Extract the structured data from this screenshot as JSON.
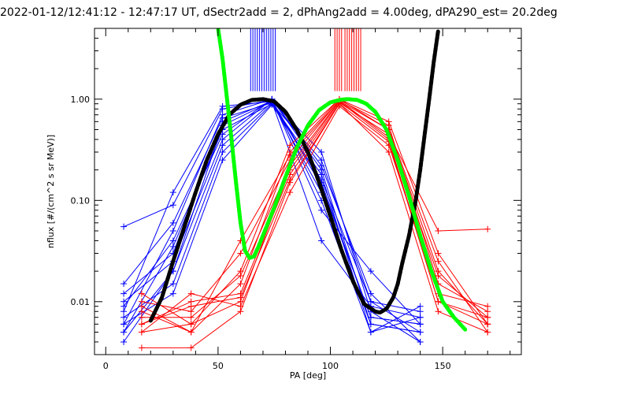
{
  "chart_data": {
    "type": "line",
    "title": "2022-01-12/12:41:12 - 12:47:17 UT, dSectr2add = 2, dPhAng2add = 4.00deg, dPA290_est=  20.2deg",
    "xlabel": "PA [deg]",
    "ylabel": "nflux [#/(cm^2 s sr MeV)]",
    "xlim": [
      -5,
      185
    ],
    "ylim": [
      0.003,
      5.0
    ],
    "yscale": "log",
    "grid": false,
    "x_ticks": [
      0,
      50,
      100,
      150
    ],
    "x_tick_labels": [
      "0",
      "50",
      "100",
      "150"
    ],
    "y_ticks": [
      0.01,
      0.1,
      1.0
    ],
    "y_tick_labels": [
      "0.01",
      "0.10",
      "1.00"
    ],
    "colors": {
      "blue": "#0000ff",
      "red": "#ff0000",
      "green": "#00ff00",
      "black": "#000000",
      "frame": "#000000",
      "background": "#ffffff"
    },
    "vertical_markers": {
      "blue": {
        "x": [
          64.5,
          65.5,
          66.5,
          67.5,
          68.5,
          69.5,
          70.5,
          71.5,
          72.5,
          73.5,
          74.5,
          75.5
        ],
        "y_from": 1.2,
        "y_to": 5.0
      },
      "red": {
        "x": [
          102,
          103,
          104,
          105,
          106.5,
          107.5,
          108.5,
          109.5,
          110.5,
          111.5,
          112.5,
          113.5
        ],
        "y_from": 1.2,
        "y_to": 5.0
      }
    },
    "series": [
      {
        "color": "blue",
        "x": [
          8,
          30,
          52,
          74,
          96,
          118,
          140
        ],
        "y": [
          0.006,
          0.05,
          0.7,
          1.0,
          0.2,
          0.006,
          0.005
        ]
      },
      {
        "color": "blue",
        "x": [
          8,
          30,
          52,
          74,
          96,
          118,
          140
        ],
        "y": [
          0.008,
          0.12,
          0.85,
          0.95,
          0.14,
          0.007,
          0.006
        ]
      },
      {
        "color": "blue",
        "x": [
          8,
          30,
          52,
          74,
          96,
          118,
          140
        ],
        "y": [
          0.005,
          0.035,
          0.5,
          0.9,
          0.25,
          0.01,
          0.008
        ]
      },
      {
        "color": "blue",
        "x": [
          8,
          30,
          52,
          74,
          96,
          118,
          140
        ],
        "y": [
          0.01,
          0.025,
          0.4,
          1.0,
          0.1,
          0.005,
          0.007
        ]
      },
      {
        "color": "blue",
        "x": [
          8,
          30,
          52,
          74,
          96,
          118,
          140
        ],
        "y": [
          0.004,
          0.02,
          0.55,
          0.95,
          0.3,
          0.008,
          0.004
        ]
      },
      {
        "color": "blue",
        "x": [
          8,
          30,
          52,
          74,
          96,
          118,
          140
        ],
        "y": [
          0.015,
          0.06,
          0.65,
          0.92,
          0.12,
          0.006,
          0.005
        ]
      },
      {
        "color": "blue",
        "x": [
          8,
          30,
          52,
          74,
          96,
          118,
          140
        ],
        "y": [
          0.055,
          0.09,
          0.8,
          0.98,
          0.08,
          0.02,
          0.006
        ]
      },
      {
        "color": "blue",
        "x": [
          8,
          30,
          52,
          74,
          96,
          118,
          140
        ],
        "y": [
          0.007,
          0.015,
          0.3,
          0.9,
          0.18,
          0.005,
          0.009
        ]
      },
      {
        "color": "blue",
        "x": [
          8,
          30,
          52,
          74,
          96,
          118,
          140
        ],
        "y": [
          0.009,
          0.04,
          0.45,
          1.0,
          0.22,
          0.012,
          0.004
        ]
      },
      {
        "color": "blue",
        "x": [
          8,
          30,
          52,
          74,
          96,
          118,
          140
        ],
        "y": [
          0.012,
          0.03,
          0.6,
          0.96,
          0.15,
          0.007,
          0.006
        ]
      },
      {
        "color": "blue",
        "x": [
          8,
          30,
          52,
          74,
          96,
          118,
          140
        ],
        "y": [
          0.006,
          0.012,
          0.25,
          0.88,
          0.16,
          0.01,
          0.005
        ]
      },
      {
        "color": "blue",
        "x": [
          8,
          30,
          52,
          74,
          96,
          118,
          140
        ],
        "y": [
          0.005,
          0.02,
          0.35,
          0.93,
          0.04,
          0.009,
          0.007
        ]
      },
      {
        "color": "red",
        "x": [
          16,
          38,
          60,
          82,
          104,
          126,
          148,
          170
        ],
        "y": [
          0.005,
          0.006,
          0.01,
          0.2,
          0.95,
          0.4,
          0.01,
          0.007
        ]
      },
      {
        "color": "red",
        "x": [
          16,
          38,
          60,
          82,
          104,
          126,
          148,
          170
        ],
        "y": [
          0.008,
          0.005,
          0.015,
          0.3,
          1.0,
          0.5,
          0.02,
          0.006
        ]
      },
      {
        "color": "red",
        "x": [
          16,
          38,
          60,
          82,
          104,
          126,
          148,
          170
        ],
        "y": [
          0.0035,
          0.0035,
          0.008,
          0.15,
          0.9,
          0.3,
          0.008,
          0.005
        ]
      },
      {
        "color": "red",
        "x": [
          16,
          38,
          60,
          82,
          104,
          126,
          148,
          170
        ],
        "y": [
          0.01,
          0.008,
          0.03,
          0.25,
          0.98,
          0.55,
          0.015,
          0.008
        ]
      },
      {
        "color": "red",
        "x": [
          16,
          38,
          60,
          82,
          104,
          126,
          148,
          170
        ],
        "y": [
          0.006,
          0.01,
          0.012,
          0.18,
          0.92,
          0.45,
          0.05,
          0.052
        ]
      },
      {
        "color": "red",
        "x": [
          16,
          38,
          60,
          82,
          104,
          126,
          148,
          170
        ],
        "y": [
          0.012,
          0.006,
          0.02,
          0.35,
          1.0,
          0.6,
          0.03,
          0.006
        ]
      },
      {
        "color": "red",
        "x": [
          16,
          38,
          60,
          82,
          104,
          126,
          148,
          170
        ],
        "y": [
          0.005,
          0.012,
          0.009,
          0.12,
          0.85,
          0.35,
          0.012,
          0.009
        ]
      },
      {
        "color": "red",
        "x": [
          16,
          38,
          60,
          82,
          104,
          126,
          148,
          170
        ],
        "y": [
          0.007,
          0.007,
          0.018,
          0.22,
          0.96,
          0.5,
          0.025,
          0.005
        ]
      },
      {
        "color": "red",
        "x": [
          16,
          38,
          60,
          82,
          104,
          126,
          148,
          170
        ],
        "y": [
          0.009,
          0.005,
          0.04,
          0.28,
          0.97,
          0.42,
          0.018,
          0.007
        ]
      },
      {
        "color": "red",
        "x": [
          16,
          38,
          60,
          82,
          104,
          126,
          148,
          170
        ],
        "y": [
          0.006,
          0.009,
          0.011,
          0.16,
          0.9,
          0.38,
          0.01,
          0.006
        ]
      },
      {
        "color": "black",
        "style": "dashed-thick",
        "x": [
          20,
          25,
          30,
          35,
          40,
          45,
          50,
          55,
          60,
          65,
          70,
          75,
          80,
          85,
          90,
          95,
          100,
          105,
          110,
          115,
          120,
          122,
          125,
          128,
          130,
          132,
          135,
          138,
          140,
          142,
          144,
          146,
          148
        ],
        "y": [
          0.0065,
          0.011,
          0.025,
          0.055,
          0.12,
          0.25,
          0.45,
          0.7,
          0.88,
          0.98,
          1.0,
          0.95,
          0.75,
          0.5,
          0.3,
          0.15,
          0.07,
          0.032,
          0.016,
          0.0095,
          0.008,
          0.0078,
          0.0085,
          0.011,
          0.015,
          0.024,
          0.045,
          0.1,
          0.2,
          0.45,
          1.0,
          2.3,
          4.8
        ]
      },
      {
        "color": "green",
        "style": "dashed-thick",
        "x": [
          50,
          52,
          54,
          56,
          58,
          60,
          62,
          64,
          66,
          68,
          70,
          75,
          80,
          85,
          90,
          95,
          100,
          105,
          108,
          112,
          116,
          120,
          125,
          130,
          135,
          140,
          145,
          150,
          155,
          160
        ],
        "y": [
          5.0,
          2.5,
          1.0,
          0.4,
          0.15,
          0.06,
          0.032,
          0.027,
          0.028,
          0.035,
          0.045,
          0.085,
          0.17,
          0.33,
          0.55,
          0.78,
          0.93,
          0.99,
          1.0,
          0.98,
          0.9,
          0.75,
          0.5,
          0.25,
          0.11,
          0.045,
          0.02,
          0.01,
          0.007,
          0.0053
        ]
      }
    ]
  }
}
